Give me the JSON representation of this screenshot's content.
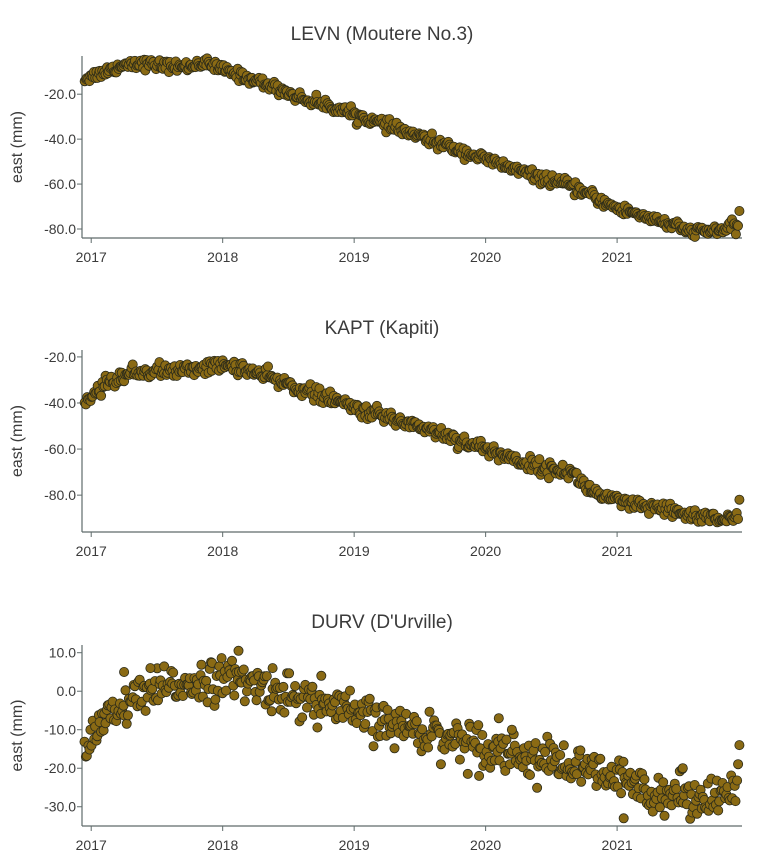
{
  "chart_data": [
    {
      "type": "scatter",
      "title": "LEVN (Moutere No.3)",
      "ylabel": "east (mm)",
      "xlim": [
        2016.93,
        2021.95
      ],
      "ylim": [
        -84,
        -3
      ],
      "xticks": [
        2017,
        2018,
        2019,
        2020,
        2021
      ],
      "xtick_labels": [
        "2017",
        "2018",
        "2019",
        "2020",
        "2021"
      ],
      "yticks": [
        -20,
        -40,
        -60,
        -80
      ],
      "ytick_labels": [
        "-20.0",
        "-40.0",
        "-60.0",
        "-80.0"
      ],
      "marker_color": "#8a6a14",
      "trend": {
        "x": [
          2016.95,
          2017.1,
          2017.3,
          2017.5,
          2017.7,
          2017.85,
          2018.0,
          2018.2,
          2018.4,
          2018.6,
          2018.8,
          2019.0,
          2019.2,
          2019.4,
          2019.6,
          2019.8,
          2020.0,
          2020.2,
          2020.4,
          2020.6,
          2020.8,
          2021.0,
          2021.2,
          2021.4,
          2021.55,
          2021.7,
          2021.92
        ],
        "y": [
          -13,
          -10,
          -6,
          -7,
          -8,
          -6,
          -9,
          -13,
          -17,
          -22,
          -25,
          -29,
          -33,
          -37,
          -41,
          -45,
          -49,
          -53,
          -57,
          -60,
          -65,
          -71,
          -74,
          -78,
          -81,
          -81,
          -79
        ]
      },
      "noise": 1.2,
      "outliers": [
        {
          "x": 2021.93,
          "y": -72
        }
      ],
      "n_points": 560
    },
    {
      "type": "scatter",
      "title": "KAPT (Kapiti)",
      "ylabel": "east (mm)",
      "xlim": [
        2016.93,
        2021.95
      ],
      "ylim": [
        -96,
        -17
      ],
      "xticks": [
        2017,
        2018,
        2019,
        2020,
        2021
      ],
      "xtick_labels": [
        "2017",
        "2018",
        "2019",
        "2020",
        "2021"
      ],
      "yticks": [
        -20,
        -40,
        -60,
        -80
      ],
      "ytick_labels": [
        "-20.0",
        "-40.0",
        "-60.0",
        "-80.0"
      ],
      "marker_color": "#8a6a14",
      "trend": {
        "x": [
          2016.95,
          2017.1,
          2017.3,
          2017.5,
          2017.7,
          2017.9,
          2018.1,
          2018.3,
          2018.5,
          2018.7,
          2018.9,
          2019.1,
          2019.3,
          2019.5,
          2019.7,
          2019.9,
          2020.1,
          2020.3,
          2020.5,
          2020.65,
          2020.8,
          2021.0,
          2021.2,
          2021.4,
          2021.6,
          2021.92
        ],
        "y": [
          -40,
          -32,
          -27,
          -26,
          -26,
          -24,
          -24,
          -28,
          -32,
          -36,
          -40,
          -44,
          -47,
          -50,
          -54,
          -58,
          -62,
          -66,
          -69,
          -70,
          -78,
          -83,
          -85,
          -87,
          -89,
          -91
        ]
      },
      "noise": 1.5,
      "outliers": [
        {
          "x": 2021.93,
          "y": -82
        }
      ],
      "n_points": 560
    },
    {
      "type": "scatter",
      "title": "DURV (D'Urville)",
      "ylabel": "east (mm)",
      "xlim": [
        2016.93,
        2021.95
      ],
      "ylim": [
        -35,
        12
      ],
      "xticks": [
        2017,
        2018,
        2019,
        2020,
        2021
      ],
      "xtick_labels": [
        "2017",
        "2018",
        "2019",
        "2020",
        "2021"
      ],
      "yticks": [
        10,
        0,
        -10,
        -20,
        -30
      ],
      "ytick_labels": [
        "10.0",
        "0.0",
        "-10.0",
        "-20.0",
        "-30.0"
      ],
      "marker_color": "#8a6a14",
      "trend": {
        "x": [
          2016.95,
          2017.1,
          2017.3,
          2017.5,
          2017.7,
          2017.9,
          2018.1,
          2018.3,
          2018.5,
          2018.7,
          2018.9,
          2019.1,
          2019.3,
          2019.5,
          2019.7,
          2019.9,
          2020.1,
          2020.3,
          2020.5,
          2020.7,
          2020.9,
          2021.1,
          2021.3,
          2021.5,
          2021.7,
          2021.92
        ],
        "y": [
          -12,
          -8,
          -3,
          0,
          2,
          3,
          3,
          1,
          -1,
          -3,
          -5,
          -7,
          -9,
          -10,
          -12,
          -13,
          -15,
          -17,
          -18,
          -20,
          -22,
          -24,
          -26,
          -27,
          -27,
          -26
        ]
      },
      "noise": 2.6,
      "outliers": [
        {
          "x": 2017.25,
          "y": 5
        },
        {
          "x": 2017.45,
          "y": 6
        },
        {
          "x": 2018.12,
          "y": 10.5
        },
        {
          "x": 2018.38,
          "y": 6
        },
        {
          "x": 2018.75,
          "y": 4
        },
        {
          "x": 2019.95,
          "y": -22
        },
        {
          "x": 2020.1,
          "y": -7
        },
        {
          "x": 2020.2,
          "y": -10
        },
        {
          "x": 2021.05,
          "y": -33
        },
        {
          "x": 2021.5,
          "y": -20
        },
        {
          "x": 2021.93,
          "y": -14
        }
      ],
      "n_points": 560
    }
  ]
}
